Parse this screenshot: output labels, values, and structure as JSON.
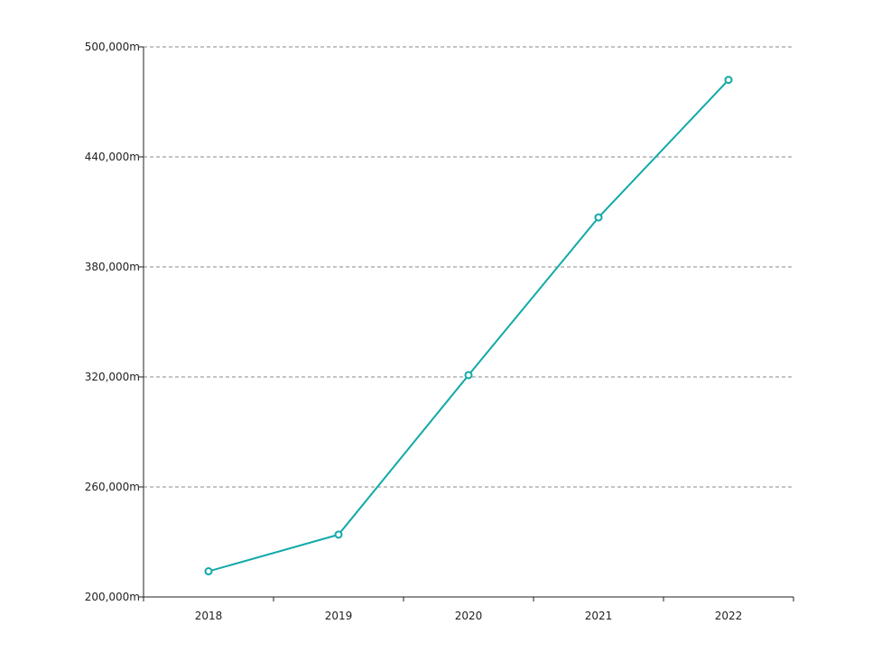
{
  "chart_data": {
    "type": "line",
    "title": "",
    "xlabel": "",
    "ylabel": "",
    "categories": [
      "2018",
      "2019",
      "2020",
      "2021",
      "2022"
    ],
    "series": [
      {
        "values": [
          214000,
          234000,
          321000,
          407000,
          482000
        ]
      }
    ],
    "ylim": [
      200000,
      500000
    ],
    "yticks": [
      200000,
      260000,
      320000,
      380000,
      440000,
      500000
    ],
    "ytick_labels": [
      "200,000m",
      "260,000m",
      "320,000m",
      "380,000m",
      "440,000m",
      "500,000m"
    ],
    "grid": "horizontal dashed",
    "legend": "none",
    "colors": {
      "line": "#12a9a9",
      "grid": "#888888",
      "axis": "#222222"
    }
  }
}
